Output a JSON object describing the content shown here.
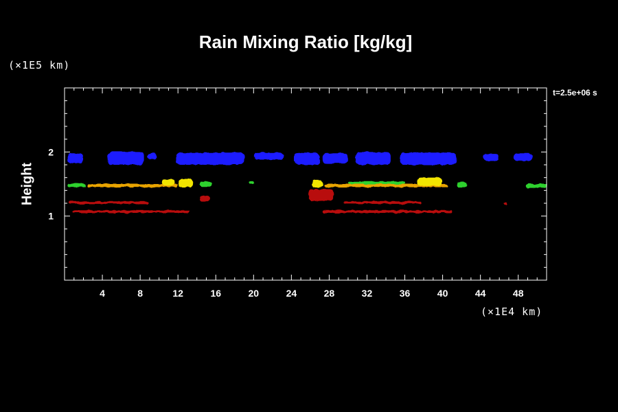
{
  "chart_data": {
    "type": "heatmap",
    "title": "Rain Mixing Ratio [kg/kg]",
    "ylabel": "Height",
    "xlabel": "",
    "x_unit": "(×1E4 km)",
    "y_unit": "(×1E5 km)",
    "time_label": "t=2.5e+06 s",
    "xlim": [
      0,
      51
    ],
    "ylim": [
      0,
      3
    ],
    "x_ticks": [
      4,
      8,
      12,
      16,
      20,
      24,
      28,
      32,
      36,
      40,
      44,
      48
    ],
    "x_tick_labels": [
      "4",
      "8",
      "12",
      "16",
      "20",
      "24",
      "28",
      "32",
      "36",
      "40",
      "44",
      "48"
    ],
    "y_ticks": [
      1,
      2
    ],
    "y_tick_labels": [
      "1",
      "2"
    ],
    "colors": {
      "blue": "#1a1aff",
      "green": "#2ed12e",
      "yellow": "#f2e500",
      "orange": "#e8a300",
      "red": "#b80c0c",
      "background": "#000000",
      "axes": "#ffffff"
    },
    "features": [
      {
        "color": "blue",
        "x": [
          0.3,
          2.0
        ],
        "y": [
          1.82,
          1.98
        ]
      },
      {
        "color": "blue",
        "x": [
          4.6,
          8.4
        ],
        "y": [
          1.8,
          2.01
        ]
      },
      {
        "color": "blue",
        "x": [
          8.8,
          9.8
        ],
        "y": [
          1.88,
          1.98
        ]
      },
      {
        "color": "blue",
        "x": [
          11.8,
          19.0
        ],
        "y": [
          1.8,
          1.99
        ]
      },
      {
        "color": "blue",
        "x": [
          20.0,
          23.2
        ],
        "y": [
          1.88,
          1.99
        ]
      },
      {
        "color": "blue",
        "x": [
          24.3,
          27.0
        ],
        "y": [
          1.8,
          1.99
        ]
      },
      {
        "color": "blue",
        "x": [
          27.3,
          30.0
        ],
        "y": [
          1.82,
          1.98
        ]
      },
      {
        "color": "blue",
        "x": [
          30.8,
          34.5
        ],
        "y": [
          1.8,
          2.0
        ]
      },
      {
        "color": "blue",
        "x": [
          35.5,
          41.5
        ],
        "y": [
          1.8,
          1.99
        ]
      },
      {
        "color": "blue",
        "x": [
          44.3,
          46.0
        ],
        "y": [
          1.86,
          1.97
        ]
      },
      {
        "color": "blue",
        "x": [
          47.5,
          49.5
        ],
        "y": [
          1.86,
          1.98
        ]
      },
      {
        "color": "green",
        "x": [
          0.3,
          2.3
        ],
        "y": [
          1.45,
          1.51
        ]
      },
      {
        "color": "orange",
        "x": [
          2.5,
          12.0
        ],
        "y": [
          1.45,
          1.5
        ]
      },
      {
        "color": "yellow",
        "x": [
          10.3,
          11.7
        ],
        "y": [
          1.47,
          1.58
        ]
      },
      {
        "color": "yellow",
        "x": [
          12.0,
          13.6
        ],
        "y": [
          1.45,
          1.58
        ]
      },
      {
        "color": "green",
        "x": [
          14.3,
          15.6
        ],
        "y": [
          1.46,
          1.54
        ]
      },
      {
        "color": "green",
        "x": [
          19.5,
          20.0
        ],
        "y": [
          1.5,
          1.55
        ]
      },
      {
        "color": "yellow",
        "x": [
          26.2,
          27.4
        ],
        "y": [
          1.44,
          1.56
        ]
      },
      {
        "color": "orange",
        "x": [
          27.5,
          40.5
        ],
        "y": [
          1.45,
          1.5
        ]
      },
      {
        "color": "green",
        "x": [
          30.0,
          36.0
        ],
        "y": [
          1.5,
          1.54
        ]
      },
      {
        "color": "yellow",
        "x": [
          37.3,
          40.0
        ],
        "y": [
          1.47,
          1.6
        ]
      },
      {
        "color": "green",
        "x": [
          41.5,
          42.6
        ],
        "y": [
          1.45,
          1.53
        ]
      },
      {
        "color": "green",
        "x": [
          48.8,
          51.0
        ],
        "y": [
          1.44,
          1.5
        ]
      },
      {
        "color": "red",
        "x": [
          0.5,
          8.9
        ],
        "y": [
          1.19,
          1.23
        ]
      },
      {
        "color": "red",
        "x": [
          0.8,
          13.2
        ],
        "y": [
          1.05,
          1.09
        ]
      },
      {
        "color": "red",
        "x": [
          14.3,
          15.4
        ],
        "y": [
          1.22,
          1.32
        ]
      },
      {
        "color": "red",
        "x": [
          25.8,
          28.5
        ],
        "y": [
          1.24,
          1.42
        ]
      },
      {
        "color": "red",
        "x": [
          29.5,
          37.7
        ],
        "y": [
          1.19,
          1.23
        ]
      },
      {
        "color": "red",
        "x": [
          27.3,
          41.0
        ],
        "y": [
          1.05,
          1.09
        ]
      },
      {
        "color": "red",
        "x": [
          46.5,
          46.8
        ],
        "y": [
          1.18,
          1.22
        ]
      }
    ]
  }
}
